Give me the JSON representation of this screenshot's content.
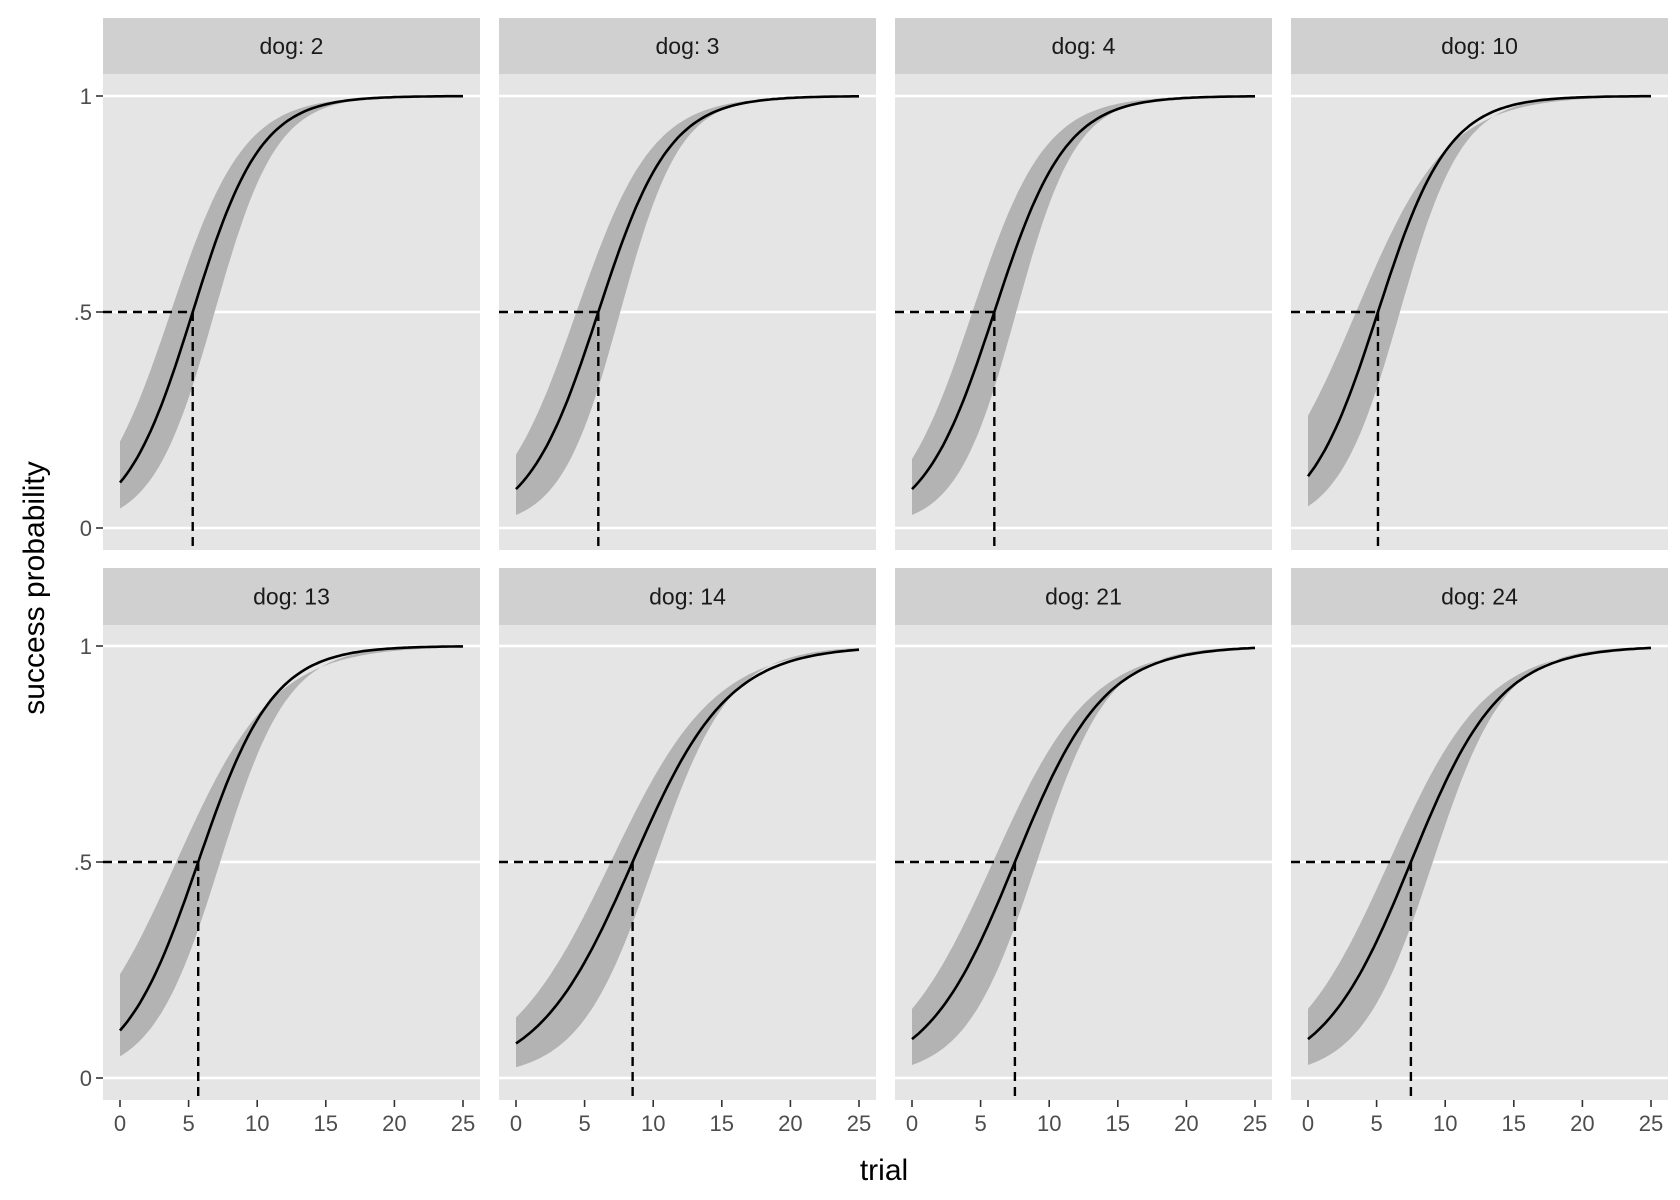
{
  "chart_data": {
    "type": "line",
    "xlabel": "trial",
    "ylabel": "success probability",
    "xlim": [
      0,
      25
    ],
    "ylim": [
      0,
      1
    ],
    "x_ticks": [
      0,
      5,
      10,
      15,
      20,
      25
    ],
    "x_tick_labels": [
      "0",
      "5",
      "10",
      "15",
      "20",
      "25"
    ],
    "y_ticks": [
      0,
      0.5,
      1
    ],
    "y_tick_labels": [
      "0",
      ".5",
      "1"
    ],
    "grid": true,
    "facet_layout": {
      "rows": 2,
      "cols": 4
    },
    "reference_level": 0.5,
    "colors": {
      "panel_bg": "#e5e5e5",
      "strip_bg": "#d0d0d0",
      "gridline": "#ffffff",
      "ribbon": "#b3b3b3",
      "line": "#000000"
    },
    "facets": [
      {
        "label": "dog: 2",
        "p_start": 0.105,
        "crossing_trial": 5.3,
        "band_start": [
          0.045,
          0.2
        ]
      },
      {
        "label": "dog: 3",
        "p_start": 0.09,
        "crossing_trial": 6.0,
        "band_start": [
          0.03,
          0.17
        ]
      },
      {
        "label": "dog: 4",
        "p_start": 0.09,
        "crossing_trial": 6.0,
        "band_start": [
          0.03,
          0.16
        ]
      },
      {
        "label": "dog: 10",
        "p_start": 0.12,
        "crossing_trial": 5.1,
        "band_start": [
          0.05,
          0.26
        ]
      },
      {
        "label": "dog: 13",
        "p_start": 0.11,
        "crossing_trial": 5.7,
        "band_start": [
          0.05,
          0.24
        ]
      },
      {
        "label": "dog: 14",
        "p_start": 0.08,
        "crossing_trial": 8.5,
        "band_start": [
          0.025,
          0.14
        ]
      },
      {
        "label": "dog: 21",
        "p_start": 0.09,
        "crossing_trial": 7.5,
        "band_start": [
          0.03,
          0.16
        ]
      },
      {
        "label": "dog: 24",
        "p_start": 0.09,
        "crossing_trial": 7.5,
        "band_start": [
          0.03,
          0.16
        ]
      }
    ]
  }
}
